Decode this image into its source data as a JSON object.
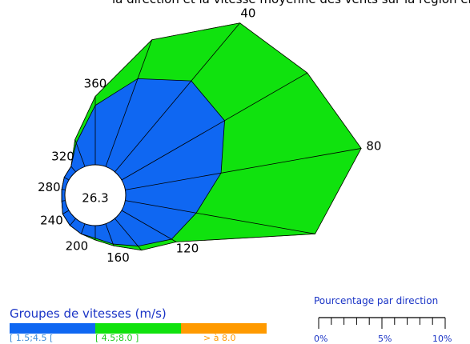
{
  "top_caption": "la direction et la vitesse moyenne des vents sur la région en considérant les vitesses par secteur)",
  "chart_data": {
    "type": "wind-rose",
    "center_value": "26.3",
    "directions_deg": [
      0,
      20,
      40,
      60,
      80,
      100,
      120,
      140,
      160,
      180,
      200,
      220,
      240,
      260,
      280,
      300,
      320,
      340
    ],
    "direction_labels": [
      {
        "deg": 40,
        "text": "40"
      },
      {
        "deg": 80,
        "text": "80"
      },
      {
        "deg": 120,
        "text": "120"
      },
      {
        "deg": 160,
        "text": "160"
      },
      {
        "deg": 200,
        "text": "200"
      },
      {
        "deg": 240,
        "text": "240"
      },
      {
        "deg": 280,
        "text": "280"
      },
      {
        "deg": 320,
        "text": "320"
      },
      {
        "deg": 360,
        "text": "360"
      }
    ],
    "unit": "%",
    "series": [
      {
        "name": "[ 1.5;4.5 [",
        "color": "#0f67f2",
        "cumulative_percent": [
          3.3,
          5.2,
          6.6,
          6.6,
          5.4,
          4.0,
          3.2,
          2.0,
          1.2,
          0.7,
          0.6,
          0.5,
          0.4,
          0.2,
          0.2,
          0.3,
          0.4,
          1.4
        ]
      },
      {
        "name": "[ 4.5;8.0 ]",
        "color": "#10e20e",
        "cumulative_percent": [
          3.8,
          7.5,
          10.8,
          11.9,
          13.3,
          10.7,
          3.5,
          2.3,
          1.3,
          0.8,
          0.6,
          0.5,
          0.4,
          0.2,
          0.2,
          0.3,
          0.4,
          1.6
        ]
      },
      {
        "name": "> à 8.0",
        "color": "#ff9a00",
        "cumulative_percent": [
          3.8,
          7.5,
          10.8,
          11.9,
          13.3,
          10.7,
          3.5,
          2.3,
          1.3,
          0.8,
          0.6,
          0.5,
          0.4,
          0.2,
          0.2,
          0.3,
          0.4,
          1.6
        ]
      }
    ]
  },
  "legend": {
    "title": "Groupes de vitesses (m/s)",
    "items": [
      {
        "label": "[ 1.5;4.5 [",
        "color": "#0f67f2",
        "text_color": "#3a8ad8"
      },
      {
        "label": "[ 4.5;8.0 ]",
        "color": "#10e20e",
        "text_color": "#19c919"
      },
      {
        "label": "> à 8.0",
        "color": "#ff9a00",
        "text_color": "#ff9a00"
      }
    ]
  },
  "scale": {
    "title": "Pourcentage par direction",
    "ticks": [
      "0%",
      "5%",
      "10%"
    ],
    "max_percent": 10
  }
}
